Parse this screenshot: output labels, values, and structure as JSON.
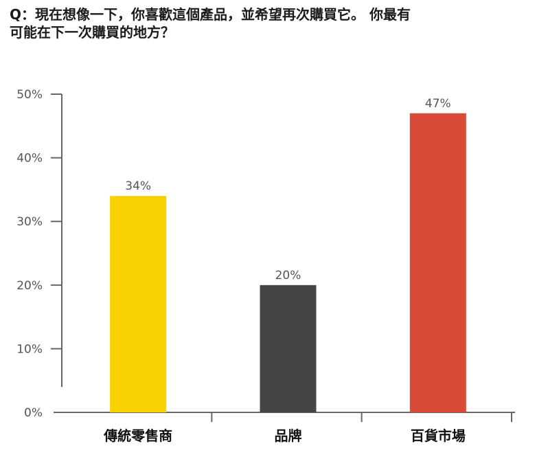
{
  "chart_data": {
    "type": "bar",
    "title_lines": [
      "Q：現在想像一下，你喜歡這個產品，並希望再次購買它。 你最有",
      "可能在下一次購買的地方？"
    ],
    "categories": [
      "傳統零售商",
      "品牌",
      "百貨市場"
    ],
    "values": [
      34,
      20,
      47
    ],
    "data_labels": [
      "34%",
      "20%",
      "47%"
    ],
    "colors": [
      "#F9D100",
      "#454545",
      "#D94B37"
    ],
    "ylim": [
      0,
      50
    ],
    "yticks": [
      0,
      10,
      20,
      30,
      40,
      50
    ],
    "ytick_labels": [
      "0%",
      "10%",
      "20%",
      "30%",
      "40%",
      "50%"
    ],
    "xlabel": "",
    "ylabel": "",
    "grid": false,
    "legend": "none"
  }
}
